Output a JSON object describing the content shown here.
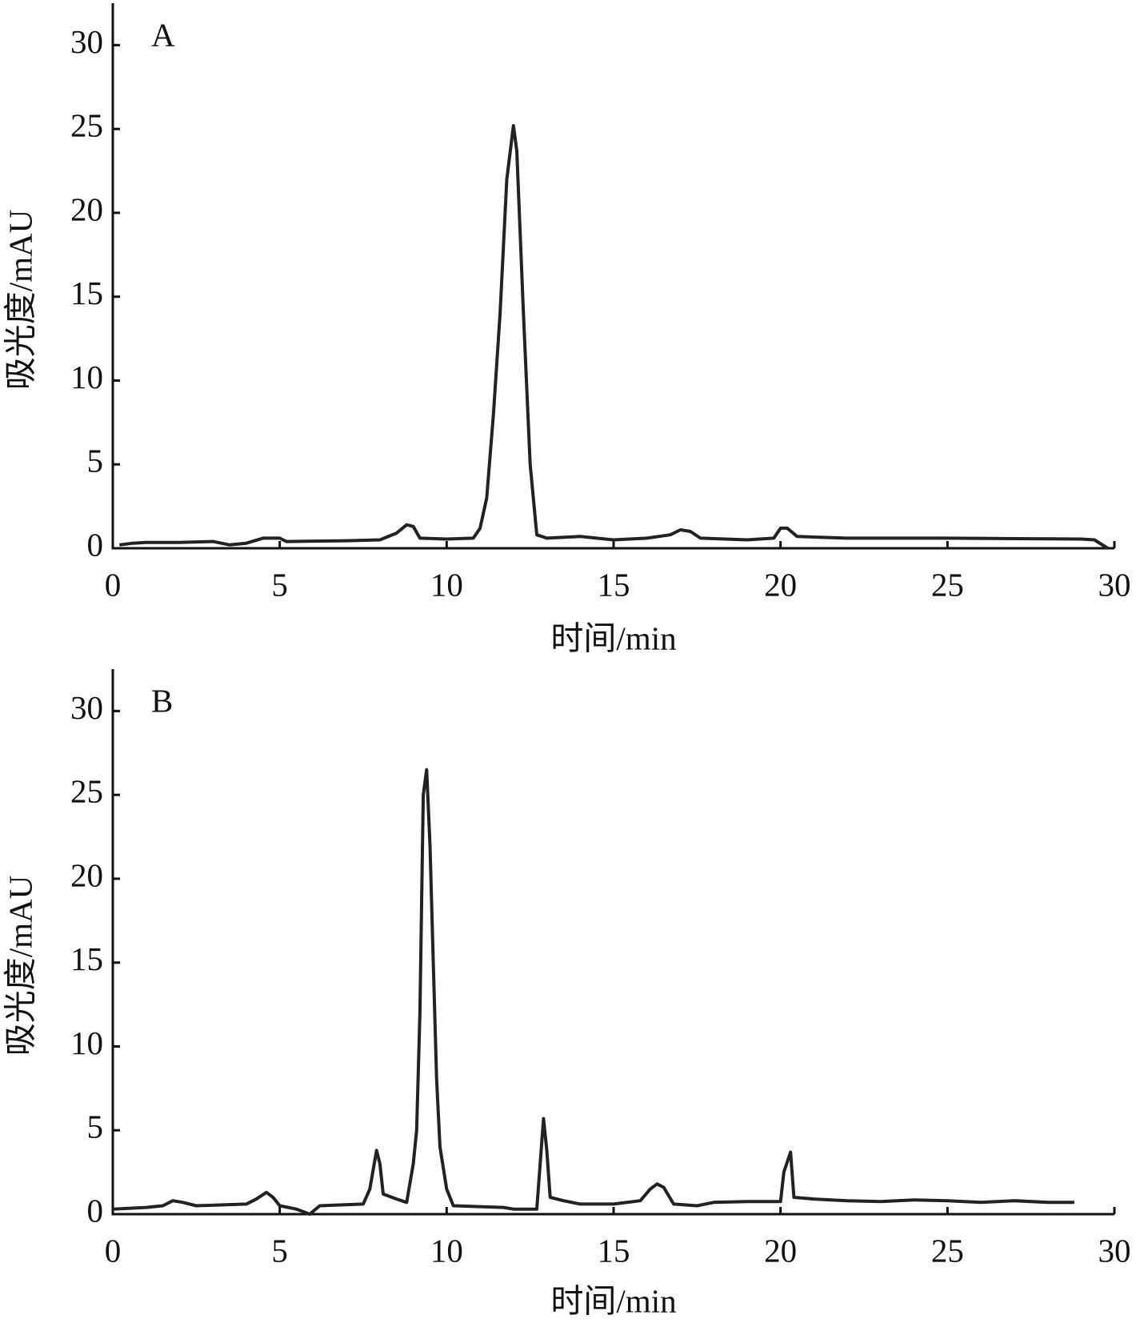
{
  "chart_data": [
    {
      "type": "line",
      "annotation": "A",
      "xlabel": "时间/min",
      "ylabel": "吸光度/mAU",
      "xlim": [
        0,
        30
      ],
      "ylim": [
        0,
        32.5
      ],
      "xticks": [
        0,
        5,
        10,
        15,
        20,
        25,
        30
      ],
      "yticks": [
        0,
        5,
        10,
        15,
        20,
        25,
        30
      ],
      "x": [
        0.2,
        0.6,
        1,
        2,
        3,
        3.5,
        4,
        4.5,
        5,
        5.2,
        7,
        8,
        8.5,
        8.8,
        9,
        9.2,
        10,
        10.8,
        11,
        11.2,
        11.4,
        11.6,
        11.8,
        12,
        12.1,
        12.3,
        12.5,
        12.7,
        13,
        14,
        15,
        16,
        16.7,
        17,
        17.3,
        17.6,
        19,
        19.8,
        20,
        20.2,
        20.5,
        22,
        25,
        29,
        29.4,
        29.8
      ],
      "series": [
        {
          "color": "#222222",
          "values": [
            0.2,
            0.3,
            0.35,
            0.35,
            0.4,
            0.2,
            0.3,
            0.6,
            0.6,
            0.4,
            0.45,
            0.5,
            0.9,
            1.4,
            1.3,
            0.6,
            0.55,
            0.6,
            1.2,
            3,
            8,
            14,
            22,
            25.2,
            23.7,
            14,
            5,
            0.8,
            0.6,
            0.7,
            0.5,
            0.6,
            0.8,
            1.1,
            1,
            0.6,
            0.5,
            0.6,
            1.2,
            1.2,
            0.7,
            0.6,
            0.6,
            0.55,
            0.5,
            0
          ]
        }
      ]
    },
    {
      "type": "line",
      "annotation": "B",
      "xlabel": "时间/min",
      "ylabel": "吸光度/mAU",
      "xlim": [
        0,
        30
      ],
      "ylim": [
        0,
        32.5
      ],
      "xticks": [
        0,
        5,
        10,
        15,
        20,
        25,
        30
      ],
      "yticks": [
        0,
        5,
        10,
        15,
        20,
        25,
        30
      ],
      "x": [
        0,
        1,
        1.5,
        1.8,
        2.1,
        2.5,
        4,
        4.3,
        4.6,
        4.8,
        5,
        5.5,
        5.9,
        6.2,
        7.5,
        7.7,
        7.9,
        8.0,
        8.1,
        8.5,
        8.8,
        9,
        9.1,
        9.2,
        9.3,
        9.4,
        9.5,
        9.6,
        9.7,
        9.8,
        10.0,
        10.2,
        11.7,
        12.0,
        12.7,
        12.8,
        12.9,
        13.0,
        13.1,
        13.5,
        14,
        15,
        15.8,
        16.1,
        16.3,
        16.5,
        16.8,
        17.5,
        18,
        19,
        20,
        20.1,
        20.3,
        20.4,
        21,
        22,
        23,
        24,
        25,
        26,
        27,
        28,
        28.8
      ],
      "series": [
        {
          "color": "#222222",
          "values": [
            0.3,
            0.4,
            0.5,
            0.8,
            0.7,
            0.5,
            0.6,
            0.9,
            1.3,
            1.0,
            0.5,
            0.3,
            0,
            0.5,
            0.6,
            1.5,
            3.8,
            3.0,
            1.2,
            0.9,
            0.7,
            3,
            5,
            12,
            25,
            26.5,
            22,
            15,
            8,
            4,
            1.5,
            0.5,
            0.4,
            0.3,
            0.3,
            3,
            5.7,
            3.8,
            1.0,
            0.8,
            0.6,
            0.6,
            0.8,
            1.5,
            1.8,
            1.6,
            0.6,
            0.5,
            0.7,
            0.75,
            0.75,
            2.5,
            3.7,
            1.0,
            0.9,
            0.8,
            0.75,
            0.85,
            0.8,
            0.7,
            0.8,
            0.7,
            0.7
          ]
        }
      ]
    }
  ]
}
